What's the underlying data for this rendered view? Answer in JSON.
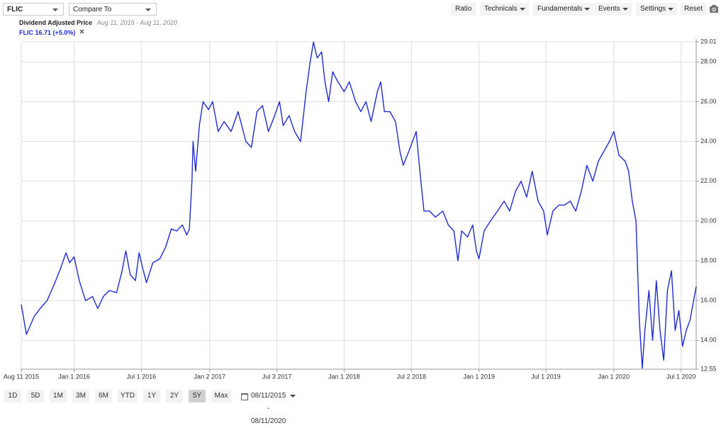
{
  "toolbar": {
    "symbol": "FLIC",
    "compare": "Compare To",
    "menus": [
      "Ratio",
      "Technicals",
      "Fundamentals",
      "Events",
      "Settings",
      "Reset"
    ]
  },
  "range_buttons": [
    "1D",
    "5D",
    "1M",
    "3M",
    "6M",
    "YTD",
    "1Y",
    "2Y",
    "5Y",
    "Max"
  ],
  "selected_range": "5Y",
  "date_range": "08/11/2015 - 08/11/2020",
  "chart_data": {
    "type": "line",
    "title": "Dividend Adjusted Price",
    "subtitle": "Aug 11, 2015 - Aug 11, 2020",
    "x": [
      "2015-08-11",
      "2015-08-25",
      "2015-09-15",
      "2015-10-01",
      "2015-10-20",
      "2015-11-10",
      "2015-11-25",
      "2015-12-10",
      "2015-12-20",
      "2016-01-01",
      "2016-01-15",
      "2016-02-01",
      "2016-02-20",
      "2016-03-05",
      "2016-03-20",
      "2016-04-05",
      "2016-04-25",
      "2016-05-10",
      "2016-05-20",
      "2016-06-01",
      "2016-06-15",
      "2016-06-25",
      "2016-07-05",
      "2016-07-15",
      "2016-08-01",
      "2016-08-20",
      "2016-09-05",
      "2016-09-20",
      "2016-10-05",
      "2016-10-20",
      "2016-11-01",
      "2016-11-08",
      "2016-11-15",
      "2016-11-18",
      "2016-11-25",
      "2016-12-05",
      "2016-12-15",
      "2016-12-30",
      "2017-01-10",
      "2017-01-25",
      "2017-02-10",
      "2017-03-01",
      "2017-03-20",
      "2017-04-10",
      "2017-04-25",
      "2017-05-10",
      "2017-05-25",
      "2017-06-10",
      "2017-06-25",
      "2017-07-10",
      "2017-07-20",
      "2017-08-05",
      "2017-08-20",
      "2017-09-05",
      "2017-09-20",
      "2017-10-01",
      "2017-10-10",
      "2017-10-20",
      "2017-11-01",
      "2017-11-10",
      "2017-11-20",
      "2017-12-01",
      "2017-12-15",
      "2018-01-01",
      "2018-01-15",
      "2018-02-01",
      "2018-02-15",
      "2018-03-01",
      "2018-03-15",
      "2018-04-01",
      "2018-04-10",
      "2018-04-20",
      "2018-05-05",
      "2018-05-20",
      "2018-06-01",
      "2018-06-10",
      "2018-06-25",
      "2018-07-05",
      "2018-07-15",
      "2018-07-25",
      "2018-08-05",
      "2018-08-20",
      "2018-09-05",
      "2018-09-25",
      "2018-10-10",
      "2018-10-25",
      "2018-11-05",
      "2018-11-15",
      "2018-12-01",
      "2018-12-15",
      "2018-12-25",
      "2019-01-01",
      "2019-01-15",
      "2019-02-01",
      "2019-02-20",
      "2019-03-10",
      "2019-03-25",
      "2019-04-10",
      "2019-04-25",
      "2019-05-10",
      "2019-05-25",
      "2019-06-10",
      "2019-06-25",
      "2019-07-05",
      "2019-07-20",
      "2019-08-05",
      "2019-08-20",
      "2019-09-05",
      "2019-09-20",
      "2019-10-05",
      "2019-10-20",
      "2019-11-05",
      "2019-11-20",
      "2019-12-05",
      "2019-12-20",
      "2020-01-01",
      "2020-01-15",
      "2020-02-01",
      "2020-02-10",
      "2020-02-20",
      "2020-03-01",
      "2020-03-10",
      "2020-03-18",
      "2020-03-25",
      "2020-04-05",
      "2020-04-15",
      "2020-04-25",
      "2020-05-05",
      "2020-05-15",
      "2020-05-25",
      "2020-06-05",
      "2020-06-15",
      "2020-06-25",
      "2020-07-05",
      "2020-07-15",
      "2020-07-25",
      "2020-08-11"
    ],
    "series": [
      {
        "name": "FLIC 16.71 (+5.0%)",
        "color": "#1f2bd1",
        "values": [
          15.8,
          14.3,
          15.2,
          15.6,
          16.0,
          16.9,
          17.6,
          18.4,
          17.9,
          18.2,
          17.0,
          16.0,
          16.2,
          15.6,
          16.2,
          16.5,
          16.4,
          17.5,
          18.5,
          17.3,
          17.0,
          18.4,
          17.6,
          16.9,
          17.9,
          18.1,
          18.7,
          19.6,
          19.5,
          19.8,
          19.3,
          19.6,
          22.0,
          24.0,
          22.5,
          24.8,
          26.0,
          25.6,
          26.0,
          24.5,
          25.0,
          24.5,
          25.5,
          24.0,
          23.7,
          25.5,
          25.8,
          24.5,
          25.2,
          26.0,
          24.8,
          25.3,
          24.5,
          24.0,
          26.5,
          28.0,
          29.0,
          28.2,
          28.5,
          27.0,
          26.0,
          27.5,
          27.0,
          26.5,
          27.0,
          26.0,
          25.5,
          26.0,
          25.0,
          26.5,
          27.0,
          25.5,
          25.5,
          25.0,
          23.5,
          22.8,
          23.5,
          24.0,
          24.5,
          22.5,
          20.5,
          20.5,
          20.2,
          20.5,
          19.8,
          19.5,
          18.0,
          19.5,
          19.2,
          19.8,
          18.5,
          18.1,
          19.5,
          20.0,
          20.5,
          21.0,
          20.5,
          21.5,
          22.0,
          21.2,
          22.5,
          21.0,
          20.5,
          19.3,
          20.5,
          20.8,
          20.8,
          21.0,
          20.5,
          21.5,
          22.8,
          22.0,
          23.0,
          23.5,
          24.0,
          24.5,
          23.3,
          23.0,
          22.5,
          21.0,
          20.0,
          15.0,
          12.6,
          14.5,
          16.5,
          14.0,
          17.0,
          14.5,
          13.0,
          16.5,
          17.5,
          14.5,
          15.5,
          13.7,
          14.5,
          15.0,
          16.71
        ]
      }
    ],
    "xlim": [
      "2015-08-11",
      "2020-08-11"
    ],
    "xticks": [
      {
        "value": "2015-08-11",
        "label": "Aug 11 2015"
      },
      {
        "value": "2016-01-01",
        "label": "Jan 1 2016"
      },
      {
        "value": "2016-07-01",
        "label": "Jul 1 2016"
      },
      {
        "value": "2017-01-02",
        "label": "Jan 2 2017"
      },
      {
        "value": "2017-07-03",
        "label": "Jul 3 2017"
      },
      {
        "value": "2018-01-01",
        "label": "Jan 1 2018"
      },
      {
        "value": "2018-07-02",
        "label": "Jul 2 2018"
      },
      {
        "value": "2019-01-01",
        "label": "Jan 1 2019"
      },
      {
        "value": "2019-07-01",
        "label": "Jul 1 2019"
      },
      {
        "value": "2020-01-01",
        "label": "Jan 1 2020"
      },
      {
        "value": "2020-07-01",
        "label": "Jul 1 2020"
      }
    ],
    "ylim": [
      12.55,
      29.01
    ],
    "yticks": [
      12.55,
      {
        "value": 14,
        "label": "14.00"
      },
      {
        "value": 16,
        "label": "16.00"
      },
      {
        "value": 18,
        "label": "18.00"
      },
      {
        "value": 20,
        "label": "20.00"
      },
      {
        "value": 22,
        "label": "22.00"
      },
      {
        "value": 24,
        "label": "24.00"
      },
      {
        "value": 26,
        "label": "26.00"
      },
      {
        "value": 28,
        "label": "28.00"
      },
      29.01
    ],
    "grid": true
  }
}
